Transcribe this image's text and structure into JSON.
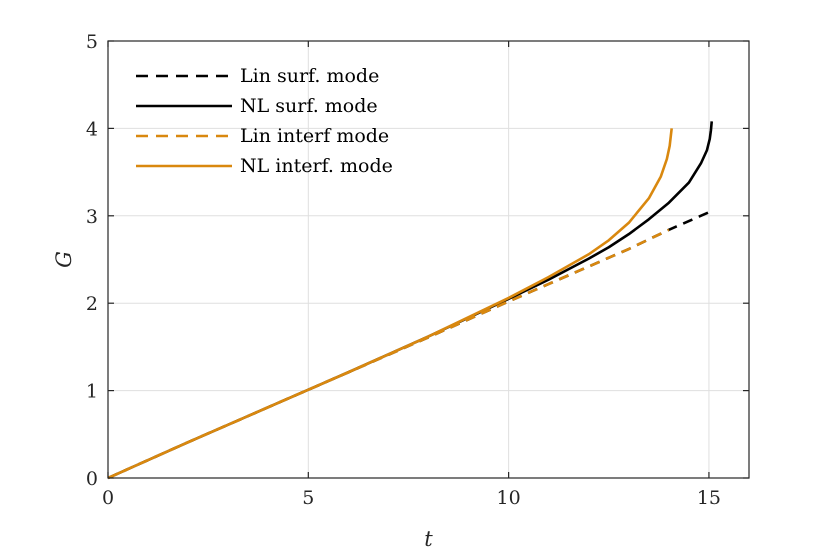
{
  "chart_data": {
    "type": "line",
    "xlabel": "t",
    "ylabel": "G",
    "xlim": [
      0,
      16
    ],
    "ylim": [
      0,
      5
    ],
    "xticks": [
      0,
      5,
      10,
      15
    ],
    "yticks": [
      0,
      1,
      2,
      3,
      4,
      5
    ],
    "xtick_labels": [
      "0",
      "5",
      "10",
      "15"
    ],
    "ytick_labels": [
      "0",
      "1",
      "2",
      "3",
      "4",
      "5"
    ],
    "grid": true,
    "legend_position": "top-left",
    "series": [
      {
        "name": "Lin surf. mode",
        "color": "#000000",
        "dash": "dashed",
        "x": [
          0,
          2,
          4,
          6,
          8,
          10,
          12,
          13,
          14,
          14.5,
          15,
          15.1
        ],
        "y": [
          0,
          0.41,
          0.81,
          1.21,
          1.61,
          2.02,
          2.42,
          2.62,
          2.84,
          2.94,
          3.04,
          3.06
        ]
      },
      {
        "name": "NL surf. mode",
        "color": "#000000",
        "dash": "solid",
        "x": [
          0,
          2,
          4,
          6,
          8,
          10,
          11,
          12,
          12.5,
          13,
          13.5,
          14,
          14.5,
          14.8,
          14.95,
          15.02,
          15.05,
          15.07
        ],
        "y": [
          0,
          0.41,
          0.81,
          1.21,
          1.62,
          2.05,
          2.27,
          2.51,
          2.64,
          2.79,
          2.96,
          3.15,
          3.38,
          3.6,
          3.75,
          3.88,
          3.98,
          4.08
        ]
      },
      {
        "name": "Lin interf mode",
        "color": "#D9880F",
        "dash": "dashed",
        "x": [
          0,
          2,
          4,
          6,
          8,
          10,
          12,
          13,
          14
        ],
        "y": [
          0,
          0.41,
          0.81,
          1.21,
          1.61,
          2.02,
          2.42,
          2.62,
          2.84
        ]
      },
      {
        "name": "NL interf. mode",
        "color": "#D9880F",
        "dash": "solid",
        "x": [
          0,
          2,
          4,
          6,
          8,
          10,
          11,
          12,
          12.5,
          13,
          13.5,
          13.8,
          13.95,
          14.02,
          14.05,
          14.07
        ],
        "y": [
          0,
          0.41,
          0.81,
          1.21,
          1.62,
          2.06,
          2.3,
          2.56,
          2.72,
          2.92,
          3.2,
          3.45,
          3.65,
          3.8,
          3.92,
          4.0
        ]
      }
    ]
  }
}
